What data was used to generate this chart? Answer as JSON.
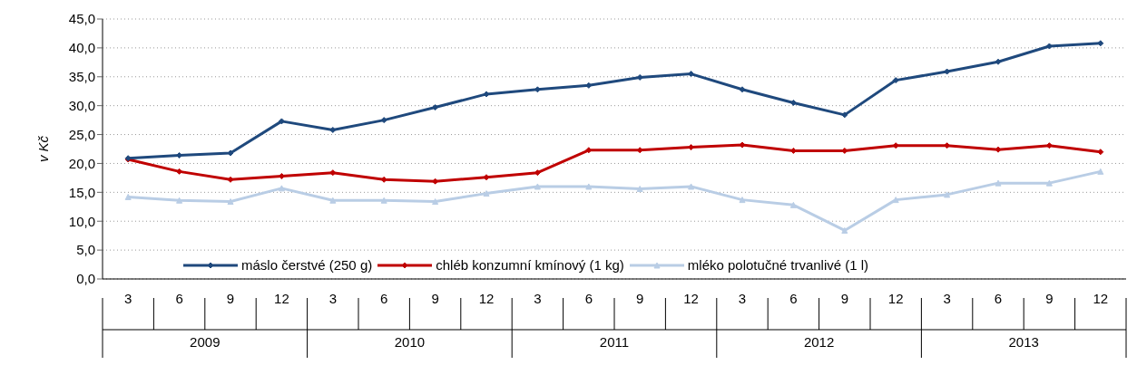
{
  "chart_data": {
    "type": "line",
    "ylabel": "v Kč",
    "categories": [
      "3",
      "6",
      "9",
      "12",
      "3",
      "6",
      "9",
      "12",
      "3",
      "6",
      "9",
      "12",
      "3",
      "6",
      "9",
      "12",
      "3",
      "6",
      "9",
      "12"
    ],
    "annotations": [
      "2009",
      "2010",
      "2011",
      "2012",
      "2013"
    ],
    "series": [
      {
        "name": "máslo čerstvé (250 g)",
        "color": "#1f497d",
        "marker": "diamond",
        "values": [
          20.9,
          21.4,
          21.8,
          27.3,
          25.8,
          27.5,
          29.7,
          32.0,
          32.8,
          33.5,
          34.9,
          35.5,
          32.8,
          30.5,
          28.4,
          34.4,
          35.9,
          37.6,
          40.3,
          40.8
        ]
      },
      {
        "name": "chléb konzumní kmínový (1 kg)",
        "color": "#c00000",
        "marker": "diamond",
        "values": [
          20.7,
          18.6,
          17.2,
          17.8,
          18.4,
          17.2,
          16.9,
          17.6,
          18.4,
          22.3,
          22.3,
          22.8,
          23.2,
          22.2,
          22.2,
          23.1,
          23.1,
          22.4,
          23.1,
          22.0
        ]
      },
      {
        "name": "mléko polotučné trvanlivé (1 l)",
        "color": "#b9cde5",
        "marker": "triangle",
        "values": [
          14.2,
          13.6,
          13.4,
          15.7,
          13.6,
          13.6,
          13.4,
          14.8,
          16.0,
          16.0,
          15.6,
          16.0,
          13.7,
          12.8,
          8.4,
          13.7,
          14.6,
          16.6,
          16.6,
          18.6
        ]
      }
    ],
    "ylim": [
      0,
      45
    ],
    "yticks": [
      {
        "value": 0,
        "label": "0,0"
      },
      {
        "value": 5,
        "label": "5,0"
      },
      {
        "value": 10,
        "label": "10,0"
      },
      {
        "value": 15,
        "label": "15,0"
      },
      {
        "value": 20,
        "label": "20,0"
      },
      {
        "value": 25,
        "label": "25,0"
      },
      {
        "value": 30,
        "label": "30,0"
      },
      {
        "value": 35,
        "label": "35,0"
      },
      {
        "value": 40,
        "label": "40,0"
      },
      {
        "value": 45,
        "label": "45,0"
      }
    ],
    "grid": "y",
    "legend": "bottom",
    "line_style": "solid"
  }
}
